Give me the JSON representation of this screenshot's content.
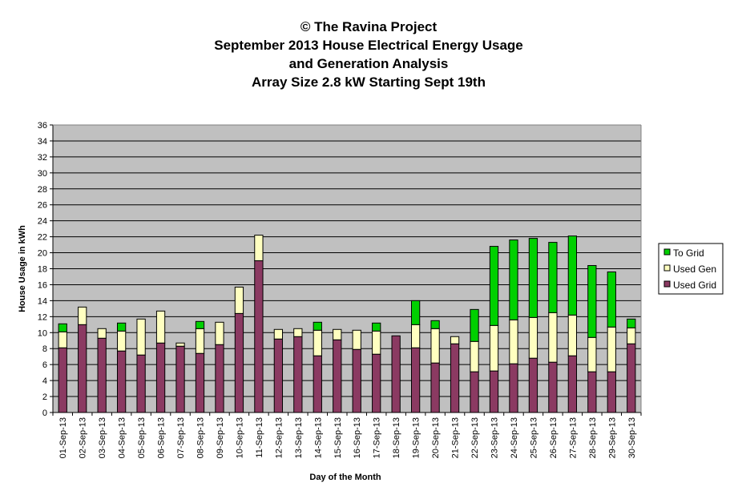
{
  "chart_data": {
    "type": "bar",
    "stacked": true,
    "title_lines": [
      "© The Ravina Project",
      "September 2013 House Electrical Energy Usage",
      "and Generation Analysis",
      "Array Size 2.8 kW Starting Sept 19th"
    ],
    "xlabel": "Day of the Month",
    "ylabel": "House Usage in kWh",
    "ylim": [
      0,
      36
    ],
    "yticks": [
      0,
      2,
      4,
      6,
      8,
      10,
      12,
      14,
      16,
      18,
      20,
      22,
      24,
      26,
      28,
      30,
      32,
      34,
      36
    ],
    "grid": true,
    "legend_position": "right",
    "plot_background": "#c0c0c0",
    "categories": [
      "01-Sep-13",
      "02-Sep-13",
      "03-Sep-13",
      "04-Sep-13",
      "05-Sep-13",
      "06-Sep-13",
      "07-Sep-13",
      "08-Sep-13",
      "09-Sep-13",
      "10-Sep-13",
      "11-Sep-13",
      "12-Sep-13",
      "13-Sep-13",
      "14-Sep-13",
      "15-Sep-13",
      "16-Sep-13",
      "17-Sep-13",
      "18-Sep-13",
      "19-Sep-13",
      "20-Sep-13",
      "21-Sep-13",
      "22-Sep-13",
      "23-Sep-13",
      "24-Sep-13",
      "25-Sep-13",
      "26-Sep-13",
      "27-Sep-13",
      "28-Sep-13",
      "29-Sep-13",
      "30-Sep-13"
    ],
    "series": [
      {
        "name": "Used Grid",
        "color": "#8b3a62",
        "values": [
          8.1,
          11.0,
          9.3,
          7.7,
          7.2,
          8.7,
          8.3,
          7.4,
          8.5,
          12.4,
          19.0,
          9.2,
          9.5,
          7.1,
          9.1,
          7.9,
          7.3,
          9.6,
          8.1,
          6.2,
          8.6,
          5.1,
          5.2,
          6.1,
          6.8,
          6.3,
          7.1,
          5.1,
          5.1,
          8.6
        ]
      },
      {
        "name": "Used Gen",
        "color": "#ffffc0",
        "values": [
          2.0,
          2.2,
          1.2,
          2.5,
          4.5,
          4.0,
          0.4,
          3.1,
          2.8,
          3.3,
          3.2,
          1.2,
          1.0,
          3.2,
          1.3,
          2.4,
          2.9,
          0.0,
          2.9,
          4.3,
          0.9,
          3.8,
          5.7,
          5.5,
          5.1,
          6.2,
          5.1,
          4.3,
          5.6,
          2.0
        ]
      },
      {
        "name": "To Grid",
        "color": "#00d000",
        "values": [
          1.0,
          0.0,
          0.0,
          1.0,
          0.0,
          0.0,
          0.0,
          0.9,
          0.0,
          0.0,
          0.0,
          0.0,
          0.0,
          1.0,
          0.0,
          0.0,
          1.0,
          0.0,
          3.0,
          1.0,
          0.0,
          4.0,
          9.9,
          10.0,
          9.9,
          8.8,
          9.9,
          9.0,
          6.9,
          1.1
        ]
      }
    ],
    "legend_order": [
      "To Grid",
      "Used Gen",
      "Used Grid"
    ]
  }
}
